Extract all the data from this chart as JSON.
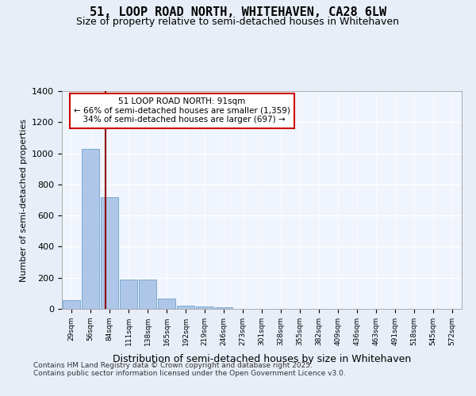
{
  "title1": "51, LOOP ROAD NORTH, WHITEHAVEN, CA28 6LW",
  "title2": "Size of property relative to semi-detached houses in Whitehaven",
  "xlabel": "Distribution of semi-detached houses by size in Whitehaven",
  "ylabel": "Number of semi-detached properties",
  "bin_labels": [
    "29sqm",
    "56sqm",
    "84sqm",
    "111sqm",
    "138sqm",
    "165sqm",
    "192sqm",
    "219sqm",
    "246sqm",
    "273sqm",
    "301sqm",
    "328sqm",
    "355sqm",
    "382sqm",
    "409sqm",
    "436sqm",
    "463sqm",
    "491sqm",
    "518sqm",
    "545sqm",
    "572sqm"
  ],
  "bar_heights": [
    55,
    1030,
    720,
    190,
    190,
    65,
    20,
    15,
    10,
    0,
    0,
    0,
    0,
    0,
    0,
    0,
    0,
    0,
    0,
    0,
    0
  ],
  "bar_color": "#aec6e8",
  "bar_edge_color": "#7aaad0",
  "property_size": 91,
  "property_label": "51 LOOP ROAD NORTH: 91sqm",
  "pct_smaller": 66,
  "count_smaller": 1359,
  "pct_larger": 34,
  "count_larger": 697,
  "vline_color": "#8b0000",
  "annotation_box_color": "#cc0000",
  "ylim": [
    0,
    1400
  ],
  "yticks": [
    0,
    200,
    400,
    600,
    800,
    1000,
    1200,
    1400
  ],
  "footer1": "Contains HM Land Registry data © Crown copyright and database right 2025.",
  "footer2": "Contains public sector information licensed under the Open Government Licence v3.0.",
  "bg_color": "#e8eef8",
  "plot_bg_color": "#f0f4fc"
}
